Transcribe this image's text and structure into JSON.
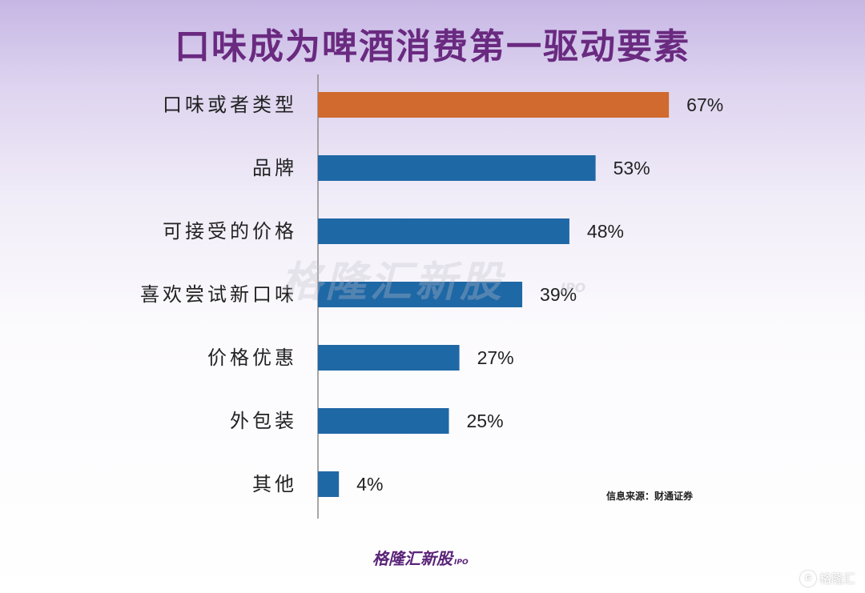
{
  "title": "口味成为啤酒消费第一驱动要素",
  "source": "信息来源：财通证券",
  "watermark": "格隆汇新股",
  "watermark_sub": "IPO",
  "footer_logo": "格隆汇新股",
  "footer_logo_sub": "IPO",
  "corner_logo": "格隆汇",
  "corner_logo_mark": "G",
  "colors": {
    "highlight": "#d06a2e",
    "bar": "#1f68a6",
    "axis": "#8a8a8a",
    "title": "#6a2a80"
  },
  "chart_data": {
    "type": "bar",
    "orientation": "horizontal",
    "title": "口味成为啤酒消费第一驱动要素",
    "categories": [
      "口味或者类型",
      "品牌",
      "可接受的价格",
      "喜欢尝试新口味",
      "价格优惠",
      "外包装",
      "其他"
    ],
    "values": [
      67,
      53,
      48,
      39,
      27,
      25,
      4
    ],
    "value_labels": [
      "67%",
      "53%",
      "48%",
      "39%",
      "27%",
      "25%",
      "4%"
    ],
    "highlight_index": 0,
    "xlim": [
      0,
      100
    ],
    "grid": false,
    "legend": "none"
  }
}
